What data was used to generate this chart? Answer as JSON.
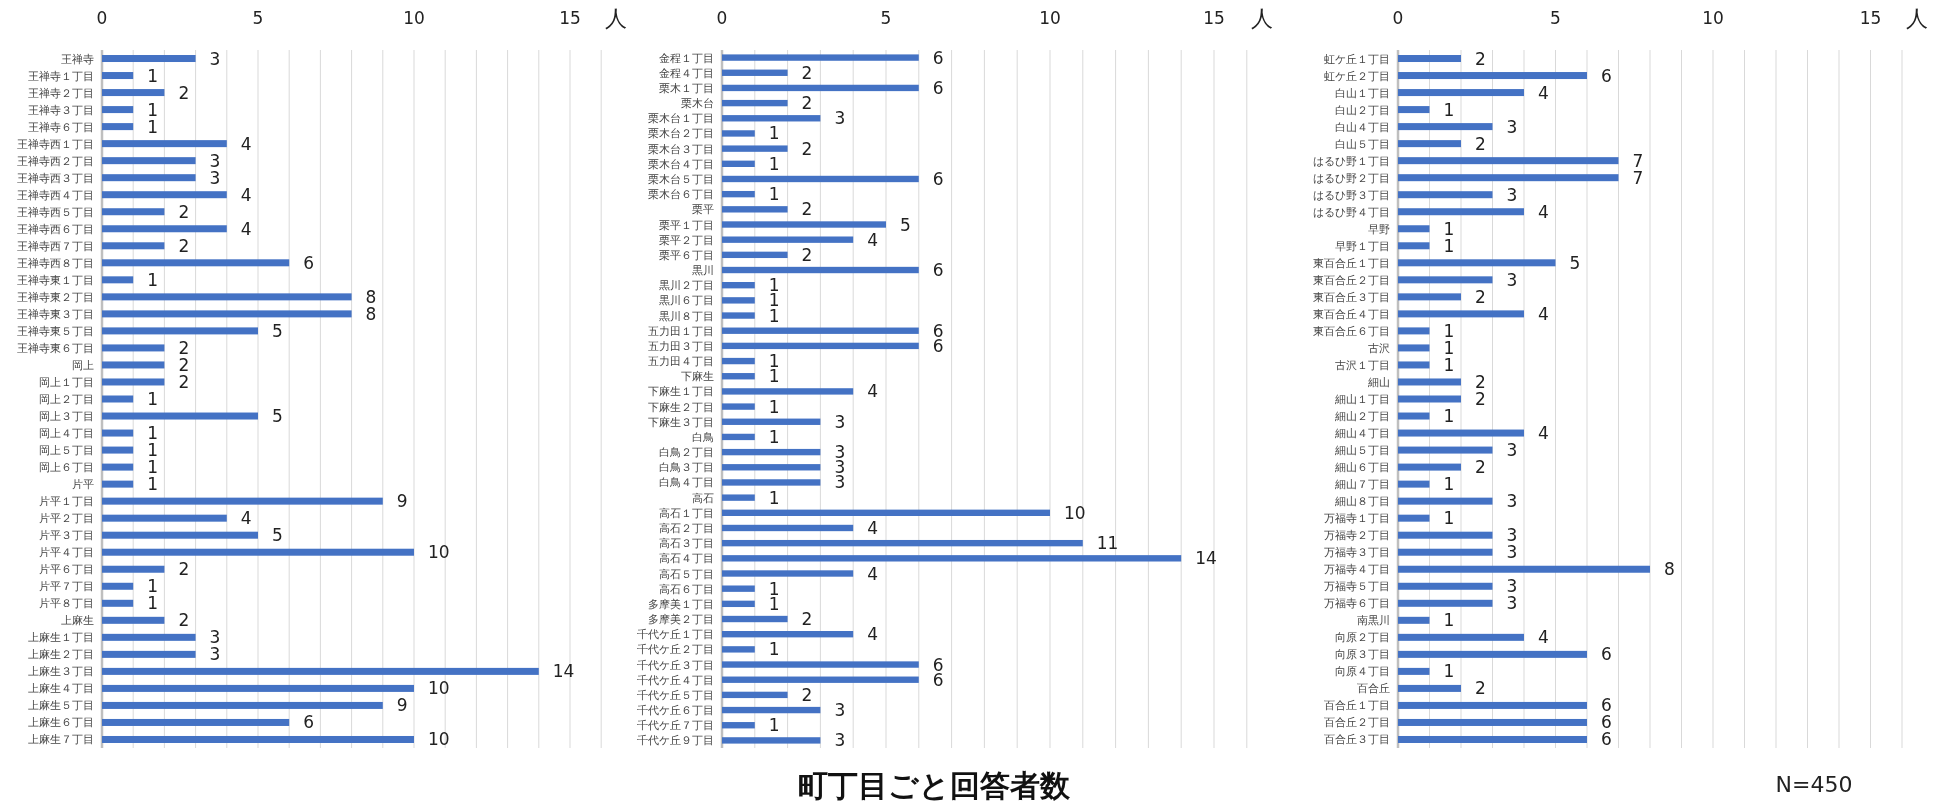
{
  "chart_data": [
    {
      "type": "bar",
      "orientation": "horizontal",
      "xlabel": "人",
      "xlim": [
        0,
        16
      ],
      "xticks": [
        0,
        {
          "value": 1,
          "label": null
        },
        {
          "value": 2,
          "label": null
        },
        {
          "value": 3,
          "label": null
        },
        {
          "value": 4,
          "label": null
        },
        5,
        {
          "value": 6,
          "label": null
        },
        {
          "value": 7,
          "label": null
        },
        {
          "value": 8,
          "label": null
        },
        {
          "value": 9,
          "label": null
        },
        10,
        {
          "value": 11,
          "label": null
        },
        {
          "value": 12,
          "label": null
        },
        {
          "value": 13,
          "label": null
        },
        {
          "value": 14,
          "label": null
        },
        15,
        {
          "value": 16,
          "label": null
        }
      ],
      "grid": "x",
      "data_labels": true,
      "color": "#4472c4",
      "categories": [
        "王禅寺",
        "王禅寺１丁目",
        "王禅寺２丁目",
        "王禅寺３丁目",
        "王禅寺６丁目",
        "王禅寺西１丁目",
        "王禅寺西２丁目",
        "王禅寺西３丁目",
        "王禅寺西４丁目",
        "王禅寺西５丁目",
        "王禅寺西６丁目",
        "王禅寺西７丁目",
        "王禅寺西８丁目",
        "王禅寺東１丁目",
        "王禅寺東２丁目",
        "王禅寺東３丁目",
        "王禅寺東５丁目",
        "王禅寺東６丁目",
        "岡上",
        "岡上１丁目",
        "岡上２丁目",
        "岡上３丁目",
        "岡上４丁目",
        "岡上５丁目",
        "岡上６丁目",
        "片平",
        "片平１丁目",
        "片平２丁目",
        "片平３丁目",
        "片平４丁目",
        "片平６丁目",
        "片平７丁目",
        "片平８丁目",
        "上麻生",
        "上麻生１丁目",
        "上麻生２丁目",
        "上麻生３丁目",
        "上麻生４丁目",
        "上麻生５丁目",
        "上麻生６丁目",
        "上麻生７丁目"
      ],
      "values": [
        3,
        1,
        2,
        1,
        1,
        4,
        3,
        3,
        4,
        2,
        4,
        2,
        6,
        1,
        8,
        8,
        5,
        2,
        2,
        2,
        1,
        5,
        1,
        1,
        1,
        1,
        9,
        4,
        5,
        10,
        2,
        1,
        1,
        2,
        3,
        3,
        14,
        10,
        9,
        6,
        10
      ]
    },
    {
      "type": "bar",
      "orientation": "horizontal",
      "title": "町丁目ごと回答者数",
      "xlabel": "人",
      "xlim": [
        0,
        16
      ],
      "xticks": [
        0,
        {
          "value": 1,
          "label": null
        },
        {
          "value": 2,
          "label": null
        },
        {
          "value": 3,
          "label": null
        },
        {
          "value": 4,
          "label": null
        },
        5,
        {
          "value": 6,
          "label": null
        },
        {
          "value": 7,
          "label": null
        },
        {
          "value": 8,
          "label": null
        },
        {
          "value": 9,
          "label": null
        },
        10,
        {
          "value": 11,
          "label": null
        },
        {
          "value": 12,
          "label": null
        },
        {
          "value": 13,
          "label": null
        },
        {
          "value": 14,
          "label": null
        },
        15,
        {
          "value": 16,
          "label": null
        }
      ],
      "grid": "x",
      "data_labels": true,
      "color": "#4472c4",
      "categories": [
        "金程１丁目",
        "金程４丁目",
        "栗木１丁目",
        "栗木台",
        "栗木台１丁目",
        "栗木台２丁目",
        "栗木台３丁目",
        "栗木台４丁目",
        "栗木台５丁目",
        "栗木台６丁目",
        "栗平",
        "栗平１丁目",
        "栗平２丁目",
        "栗平６丁目",
        "黒川",
        "黒川２丁目",
        "黒川６丁目",
        "黒川８丁目",
        "五力田１丁目",
        "五力田３丁目",
        "五力田４丁目",
        "下麻生",
        "下麻生１丁目",
        "下麻生２丁目",
        "下麻生３丁目",
        "白鳥",
        "白鳥２丁目",
        "白鳥３丁目",
        "白鳥４丁目",
        "高石",
        "高石１丁目",
        "高石２丁目",
        "高石３丁目",
        "高石４丁目",
        "高石５丁目",
        "高石６丁目",
        "多摩美１丁目",
        "多摩美２丁目",
        "千代ケ丘１丁目",
        "千代ケ丘２丁目",
        "千代ケ丘３丁目",
        "千代ケ丘４丁目",
        "千代ケ丘５丁目",
        "千代ケ丘６丁目",
        "千代ケ丘７丁目",
        "千代ケ丘９丁目"
      ],
      "values": [
        6,
        2,
        6,
        2,
        3,
        1,
        2,
        1,
        6,
        1,
        2,
        5,
        4,
        2,
        6,
        1,
        1,
        1,
        6,
        6,
        1,
        1,
        4,
        1,
        3,
        1,
        3,
        3,
        3,
        1,
        10,
        4,
        11,
        14,
        4,
        1,
        1,
        2,
        4,
        1,
        6,
        6,
        2,
        3,
        1,
        3
      ]
    },
    {
      "type": "bar",
      "orientation": "horizontal",
      "xlabel": "人",
      "xlim": [
        0,
        16
      ],
      "xticks": [
        0,
        {
          "value": 1,
          "label": null
        },
        {
          "value": 2,
          "label": null
        },
        {
          "value": 3,
          "label": null
        },
        {
          "value": 4,
          "label": null
        },
        5,
        {
          "value": 6,
          "label": null
        },
        {
          "value": 7,
          "label": null
        },
        {
          "value": 8,
          "label": null
        },
        {
          "value": 9,
          "label": null
        },
        10,
        {
          "value": 11,
          "label": null
        },
        {
          "value": 12,
          "label": null
        },
        {
          "value": 13,
          "label": null
        },
        {
          "value": 14,
          "label": null
        },
        15,
        {
          "value": 16,
          "label": null
        }
      ],
      "grid": "x",
      "data_labels": true,
      "color": "#4472c4",
      "annotations": [
        "N=450"
      ],
      "categories": [
        "虹ケ丘１丁目",
        "虹ケ丘２丁目",
        "白山１丁目",
        "白山２丁目",
        "白山４丁目",
        "白山５丁目",
        "はるひ野１丁目",
        "はるひ野２丁目",
        "はるひ野３丁目",
        "はるひ野４丁目",
        "早野",
        "早野１丁目",
        "東百合丘１丁目",
        "東百合丘２丁目",
        "東百合丘３丁目",
        "東百合丘４丁目",
        "東百合丘６丁目",
        "古沢",
        "古沢１丁目",
        "細山",
        "細山１丁目",
        "細山２丁目",
        "細山４丁目",
        "細山５丁目",
        "細山６丁目",
        "細山７丁目",
        "細山８丁目",
        "万福寺１丁目",
        "万福寺２丁目",
        "万福寺３丁目",
        "万福寺４丁目",
        "万福寺５丁目",
        "万福寺６丁目",
        "南黒川",
        "向原２丁目",
        "向原３丁目",
        "向原４丁目",
        "百合丘",
        "百合丘１丁目",
        "百合丘２丁目",
        "百合丘３丁目"
      ],
      "values": [
        2,
        6,
        4,
        1,
        3,
        2,
        7,
        7,
        3,
        4,
        1,
        1,
        5,
        3,
        2,
        4,
        1,
        1,
        1,
        2,
        2,
        1,
        4,
        3,
        2,
        1,
        3,
        1,
        3,
        3,
        8,
        3,
        3,
        1,
        4,
        6,
        1,
        2,
        6,
        6,
        6
      ]
    }
  ]
}
